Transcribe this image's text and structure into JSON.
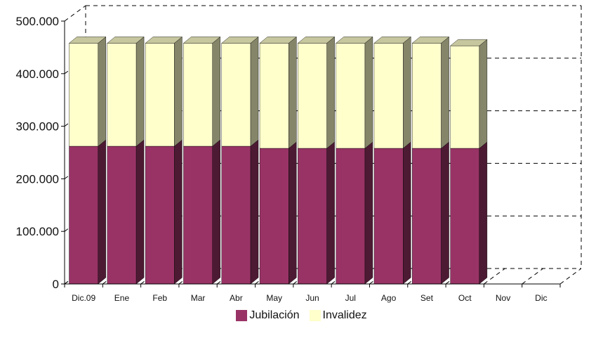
{
  "chart_data": {
    "type": "bar",
    "stacked": true,
    "three_d": true,
    "categories": [
      "Dic.09",
      "Ene",
      "Feb",
      "Mar",
      "Abr",
      "May",
      "Jun",
      "Jul",
      "Ago",
      "Set",
      "Oct",
      "Nov",
      "Dic"
    ],
    "series": [
      {
        "name": "Jubilación",
        "color": "#993366",
        "values": [
          262000,
          262000,
          262000,
          262000,
          262000,
          258000,
          258000,
          258000,
          258000,
          258000,
          258000,
          null,
          null
        ]
      },
      {
        "name": "Invalidez",
        "color": "#FFFFCC",
        "values": [
          196000,
          196000,
          196000,
          196000,
          196000,
          200000,
          200000,
          200000,
          200000,
          200000,
          195000,
          null,
          null
        ]
      }
    ],
    "ylim": [
      0,
      500000
    ],
    "yticks": [
      "0",
      "100.000",
      "200.000",
      "300.000",
      "400.000",
      "500.000"
    ],
    "ytick_values": [
      0,
      100000,
      200000,
      300000,
      400000,
      500000
    ],
    "grid": true,
    "legend_position": "bottom",
    "title": "",
    "xlabel": "",
    "ylabel": ""
  }
}
